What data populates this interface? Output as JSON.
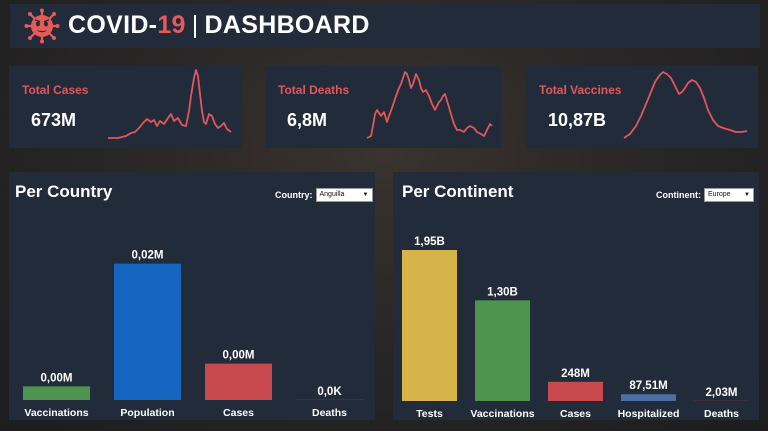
{
  "header": {
    "title_main": "COVID-",
    "title_accent": "19",
    "title_sep": "|",
    "title_sub": "DASHBOARD",
    "logo_icon": "virus-icon"
  },
  "colors": {
    "panel": "#222b39",
    "accent_red": "#e0585c",
    "bar_green": "#4e944f",
    "bar_blue": "#1565c0",
    "bar_red": "#c8494e",
    "bar_yellow": "#d6b44a",
    "bar_steel": "#4a6fa5"
  },
  "kpis": [
    {
      "label": "Total Cases",
      "value": "673M"
    },
    {
      "label": "Total Deaths",
      "value": "6,8M"
    },
    {
      "label": "Total Vaccines",
      "value": "10,87B"
    }
  ],
  "per_country": {
    "title": "Per Country",
    "filter_label": "Country:",
    "filter_value": "Anguilla"
  },
  "per_continent": {
    "title": "Per Continent",
    "filter_label": "Continent:",
    "filter_value": "Europe"
  },
  "chart_data": [
    {
      "type": "bar",
      "categories": [
        "Vaccinations",
        "Population",
        "Cases",
        "Deaths"
      ],
      "values": [
        1500,
        15000,
        4000,
        20
      ],
      "data_labels": [
        "0,00M",
        "0,02M",
        "0,00M",
        "0,0K"
      ],
      "ylim": [
        0,
        16500
      ],
      "colors": [
        "#4e944f",
        "#1565c0",
        "#c8494e",
        "#c8494e"
      ]
    },
    {
      "type": "bar",
      "categories": [
        "Tests",
        "Vaccinations",
        "Cases",
        "Hospitalized",
        "Deaths"
      ],
      "values": [
        1950,
        1300,
        248,
        87.51,
        2.03
      ],
      "data_labels": [
        "1,95B",
        "1,30B",
        "248M",
        "87,51M",
        "2,03M"
      ],
      "ylim": [
        0,
        1950
      ],
      "colors": [
        "#d6b44a",
        "#4e944f",
        "#c8494e",
        "#4a6fa5",
        "#c8494e"
      ]
    }
  ]
}
